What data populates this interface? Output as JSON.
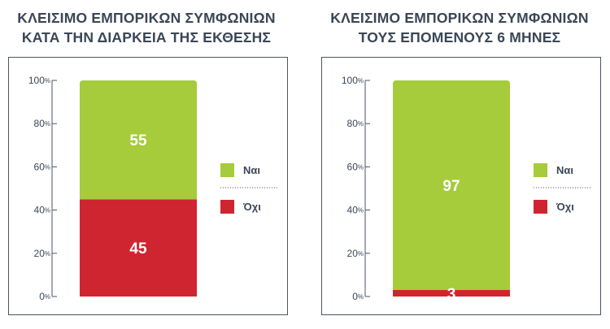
{
  "chart_data": [
    {
      "type": "bar",
      "stacked": true,
      "title_lines": [
        "ΚΛΕΙΣΙΜΟ ΕΜΠΟΡΙΚΩΝ ΣΥΜΦΩΝΙΩΝ",
        "ΚΑΤΑ ΤΗΝ ΔΙΑΡΚΕΙΑ ΤΗΣ ΕΚΘΕΣΗΣ"
      ],
      "y_ticks": [
        "0",
        "20",
        "40",
        "60",
        "80",
        "100"
      ],
      "y_tick_unit": "%",
      "ylim": [
        0,
        100
      ],
      "grid": false,
      "legend_position": "right",
      "series": [
        {
          "name": "Ναι",
          "values": [
            55
          ],
          "color": "#a6cb3b"
        },
        {
          "name": "Όχι",
          "values": [
            45
          ],
          "color": "#cf2530"
        }
      ]
    },
    {
      "type": "bar",
      "stacked": true,
      "title_lines": [
        "ΚΛΕΙΣΙΜΟ ΕΜΠΟΡΙΚΩΝ ΣΥΜΦΩΝΙΩΝ",
        "ΤΟΥΣ ΕΠΟΜΕΝΟΥΣ 6 ΜΗΝΕΣ"
      ],
      "y_ticks": [
        "0",
        "20",
        "40",
        "60",
        "80",
        "100"
      ],
      "y_tick_unit": "%",
      "ylim": [
        0,
        100
      ],
      "grid": false,
      "legend_position": "right",
      "series": [
        {
          "name": "Ναι",
          "values": [
            97
          ],
          "color": "#a6cb3b"
        },
        {
          "name": "Όχι",
          "values": [
            3
          ],
          "color": "#cf2530"
        }
      ]
    }
  ],
  "colors": {
    "text": "#3a4656",
    "frame": "#4b5563",
    "axis": "#4b5563"
  }
}
